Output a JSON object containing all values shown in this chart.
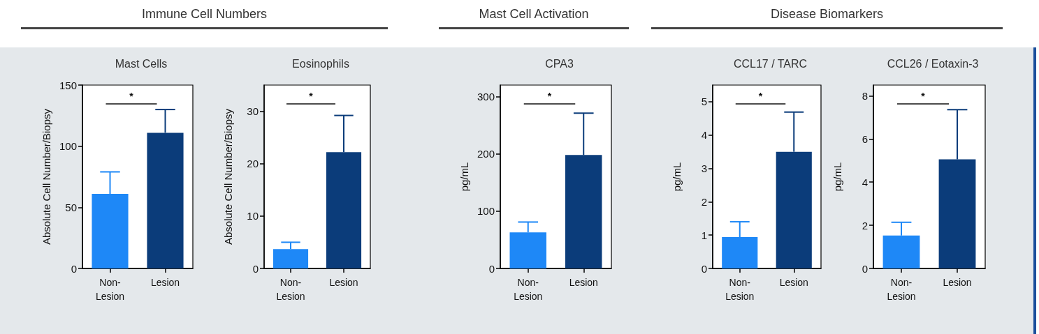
{
  "chart_data": [
    {
      "type": "bar",
      "subtitle": "Immune Cell Numbers",
      "title": "Mast Cells",
      "ylabel": "Absolute Cell Number/Biopsy",
      "categories": [
        "Non-Lesion",
        "Lesion"
      ],
      "values": [
        61,
        111
      ],
      "errors": [
        18,
        19
      ],
      "colors": [
        "#1e88f7",
        "#0b3c7a"
      ],
      "ylim": [
        0,
        150
      ],
      "yticks": [
        0,
        50,
        100,
        150
      ],
      "annotations": [
        "*"
      ]
    },
    {
      "type": "bar",
      "title": "Eosinophils",
      "ylabel": "Absolute Cell Number/Biopsy",
      "categories": [
        "Non-Lesion",
        "Lesion"
      ],
      "values": [
        3.7,
        22.2
      ],
      "errors": [
        1.3,
        7
      ],
      "colors": [
        "#1e88f7",
        "#0b3c7a"
      ],
      "ylim": [
        0,
        35
      ],
      "yticks": [
        0,
        10,
        20,
        30
      ],
      "annotations": [
        "*"
      ]
    },
    {
      "type": "bar",
      "subtitle": "Mast Cell Activation",
      "title": "CPA3",
      "ylabel": "pg/mL",
      "categories": [
        "Non-Lesion",
        "Lesion"
      ],
      "values": [
        63,
        198
      ],
      "errors": [
        18,
        73
      ],
      "colors": [
        "#1e88f7",
        "#0b3c7a"
      ],
      "ylim": [
        0,
        320
      ],
      "yticks": [
        0,
        100,
        200,
        300
      ],
      "annotations": [
        "*"
      ]
    },
    {
      "type": "bar",
      "subtitle": "Disease Biomarkers",
      "title": "CCL17 / TARC",
      "ylabel": "pg/mL",
      "categories": [
        "Non-Lesion",
        "Lesion"
      ],
      "values": [
        0.94,
        3.5
      ],
      "errors": [
        0.46,
        1.19
      ],
      "colors": [
        "#1e88f7",
        "#0b3c7a"
      ],
      "ylim": [
        0,
        5.5
      ],
      "yticks": [
        0,
        1,
        2,
        3,
        4,
        5
      ],
      "annotations": [
        "*"
      ]
    },
    {
      "type": "bar",
      "title": "CCL26 / Eotaxin-3",
      "ylabel": "pg/mL",
      "categories": [
        "Non-Lesion",
        "Lesion"
      ],
      "values": [
        1.53,
        5.06
      ],
      "errors": [
        0.61,
        2.3
      ],
      "colors": [
        "#1e88f7",
        "#0b3c7a"
      ],
      "ylim": [
        0,
        8.5
      ],
      "yticks": [
        0,
        2,
        4,
        6,
        8
      ],
      "annotations": [
        "*"
      ]
    }
  ]
}
